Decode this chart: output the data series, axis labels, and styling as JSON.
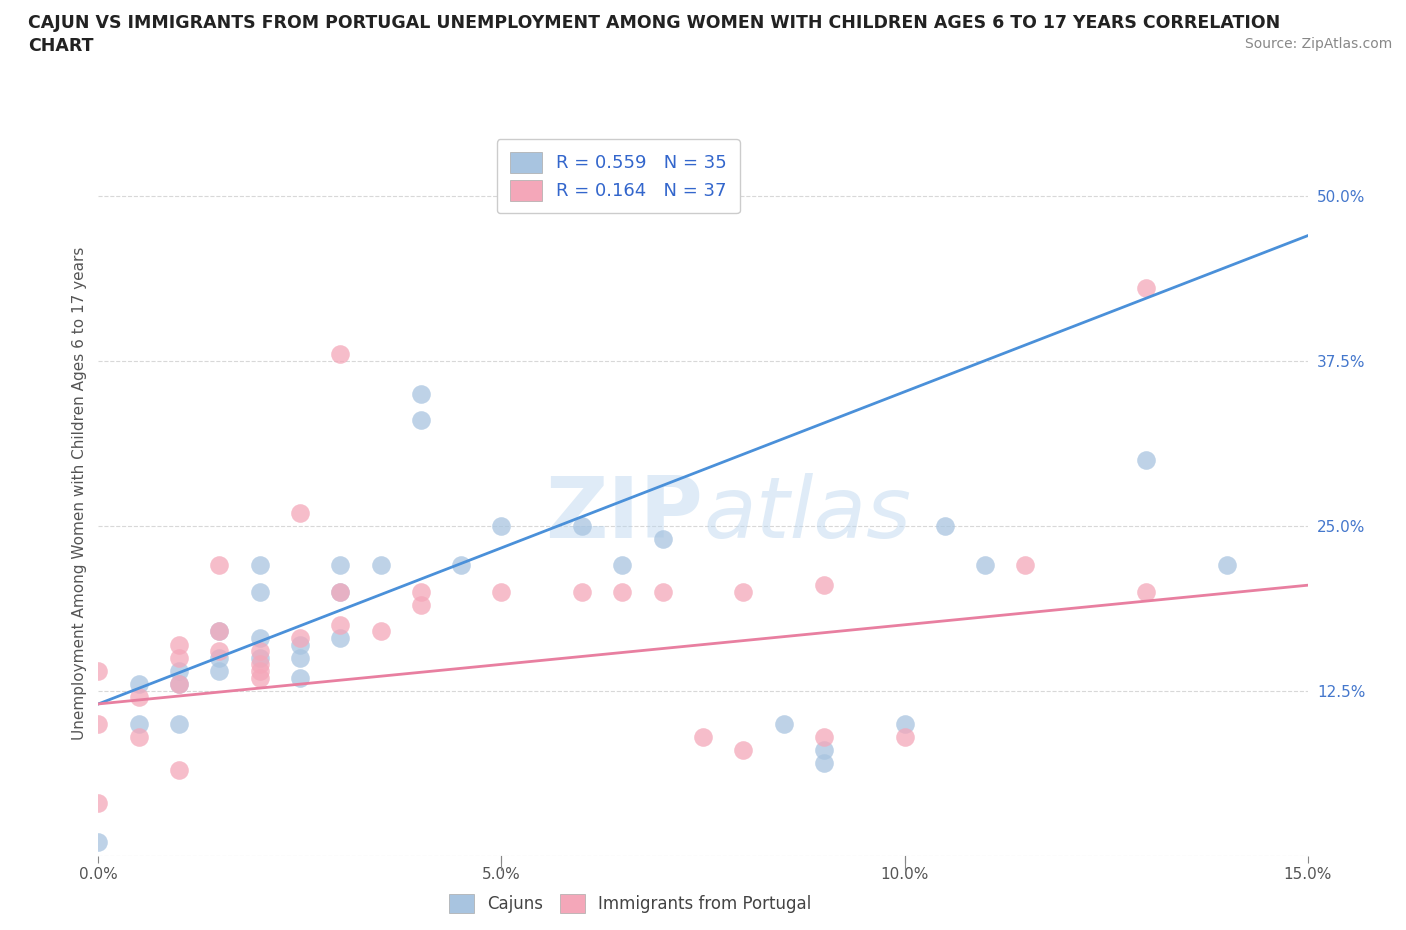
{
  "title_line1": "CAJUN VS IMMIGRANTS FROM PORTUGAL UNEMPLOYMENT AMONG WOMEN WITH CHILDREN AGES 6 TO 17 YEARS CORRELATION",
  "title_line2": "CHART",
  "source": "Source: ZipAtlas.com",
  "ylabel": "Unemployment Among Women with Children Ages 6 to 17 years",
  "xlabel": "",
  "xlim": [
    0.0,
    0.15
  ],
  "ylim": [
    0.0,
    0.55
  ],
  "xticks": [
    0.0,
    0.05,
    0.1,
    0.15
  ],
  "xticklabels": [
    "0.0%",
    "5.0%",
    "10.0%",
    "15.0%"
  ],
  "yticks": [
    0.0,
    0.125,
    0.25,
    0.375,
    0.5
  ],
  "yticklabels": [
    "",
    "12.5%",
    "25.0%",
    "37.5%",
    "50.0%"
  ],
  "cajun_R": 0.559,
  "cajun_N": 35,
  "portugal_R": 0.164,
  "portugal_N": 37,
  "cajun_color": "#a8c4e0",
  "portugal_color": "#f4a7b9",
  "cajun_line_color": "#4a90d9",
  "portugal_line_color": "#e87fa0",
  "watermark": "ZIPatlas",
  "legend_color": "#3366cc",
  "cajun_x": [
    0.0,
    0.005,
    0.005,
    0.01,
    0.01,
    0.01,
    0.015,
    0.015,
    0.015,
    0.02,
    0.02,
    0.02,
    0.02,
    0.025,
    0.025,
    0.025,
    0.03,
    0.03,
    0.03,
    0.035,
    0.04,
    0.04,
    0.045,
    0.05,
    0.06,
    0.065,
    0.07,
    0.085,
    0.09,
    0.09,
    0.1,
    0.105,
    0.11,
    0.13,
    0.14
  ],
  "cajun_y": [
    0.01,
    0.13,
    0.1,
    0.14,
    0.13,
    0.1,
    0.17,
    0.15,
    0.14,
    0.22,
    0.2,
    0.165,
    0.15,
    0.16,
    0.15,
    0.135,
    0.22,
    0.2,
    0.165,
    0.22,
    0.35,
    0.33,
    0.22,
    0.25,
    0.25,
    0.22,
    0.24,
    0.1,
    0.08,
    0.07,
    0.1,
    0.25,
    0.22,
    0.3,
    0.22
  ],
  "portugal_x": [
    0.0,
    0.0,
    0.0,
    0.005,
    0.005,
    0.01,
    0.01,
    0.01,
    0.01,
    0.015,
    0.015,
    0.015,
    0.02,
    0.02,
    0.02,
    0.02,
    0.025,
    0.025,
    0.03,
    0.03,
    0.03,
    0.035,
    0.04,
    0.04,
    0.05,
    0.06,
    0.065,
    0.07,
    0.075,
    0.08,
    0.08,
    0.09,
    0.09,
    0.1,
    0.115,
    0.13,
    0.13
  ],
  "portugal_y": [
    0.14,
    0.1,
    0.04,
    0.12,
    0.09,
    0.16,
    0.15,
    0.13,
    0.065,
    0.22,
    0.17,
    0.155,
    0.155,
    0.145,
    0.135,
    0.14,
    0.165,
    0.26,
    0.38,
    0.2,
    0.175,
    0.17,
    0.2,
    0.19,
    0.2,
    0.2,
    0.2,
    0.2,
    0.09,
    0.08,
    0.2,
    0.09,
    0.205,
    0.09,
    0.22,
    0.2,
    0.43
  ],
  "background_color": "#ffffff",
  "grid_color": "#c8c8c8"
}
